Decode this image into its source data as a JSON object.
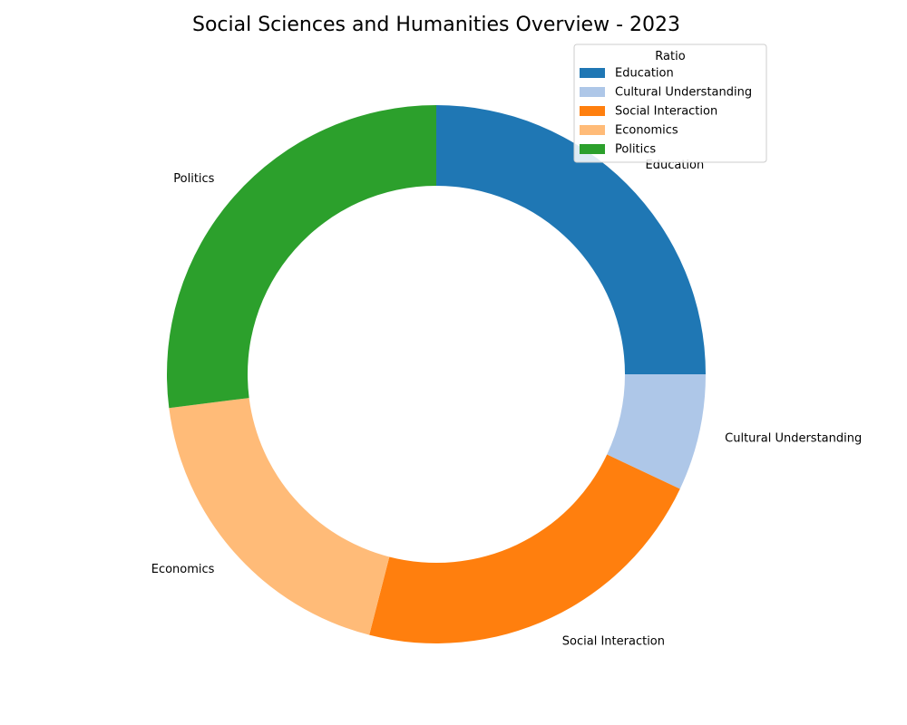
{
  "chart_data": {
    "type": "pie",
    "title": "Social Sciences and Humanities Overview - 2023",
    "legend_title": "Ratio",
    "legend_position": "top-right",
    "donut": true,
    "start_angle_deg": 90,
    "direction": "clockwise",
    "categories": [
      "Education",
      "Cultural Understanding",
      "Social Interaction",
      "Economics",
      "Politics"
    ],
    "values": [
      25,
      7,
      22,
      19,
      27
    ],
    "colors": [
      "#1f77b4",
      "#aec7e8",
      "#ff7f0e",
      "#ffbb78",
      "#2ca02c"
    ]
  }
}
